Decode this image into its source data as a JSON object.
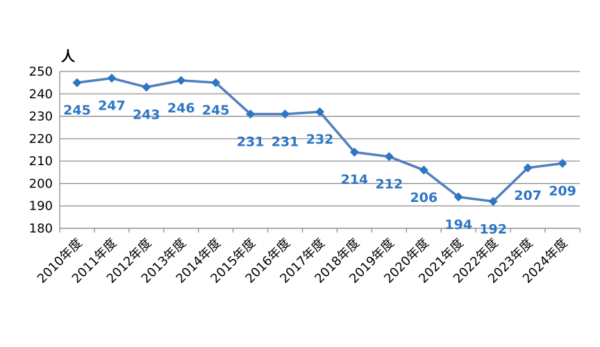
{
  "chart_data": {
    "type": "line",
    "title": "",
    "xlabel": "",
    "ylabel": "",
    "unit": "人",
    "categories": [
      "2010年度",
      "2011年度",
      "2012年度",
      "2013年度",
      "2014年度",
      "2015年度",
      "2016年度",
      "2017年度",
      "2018年度",
      "2019年度",
      "2020年度",
      "2021年度",
      "2022年度",
      "2023年度",
      "2024年度"
    ],
    "series": [
      {
        "values": [
          245,
          247,
          243,
          246,
          245,
          231,
          231,
          232,
          214,
          212,
          206,
          194,
          192,
          207,
          209
        ]
      }
    ],
    "ylim": [
      180,
      250
    ],
    "yticks": [
      180,
      190,
      200,
      210,
      220,
      230,
      240,
      250
    ],
    "grid": true,
    "legend": "none",
    "colors": {
      "line": "#4f7fbe",
      "marker": "#2e75c4",
      "labels": "#2e75c4",
      "grid": "#8c8c8c"
    }
  }
}
